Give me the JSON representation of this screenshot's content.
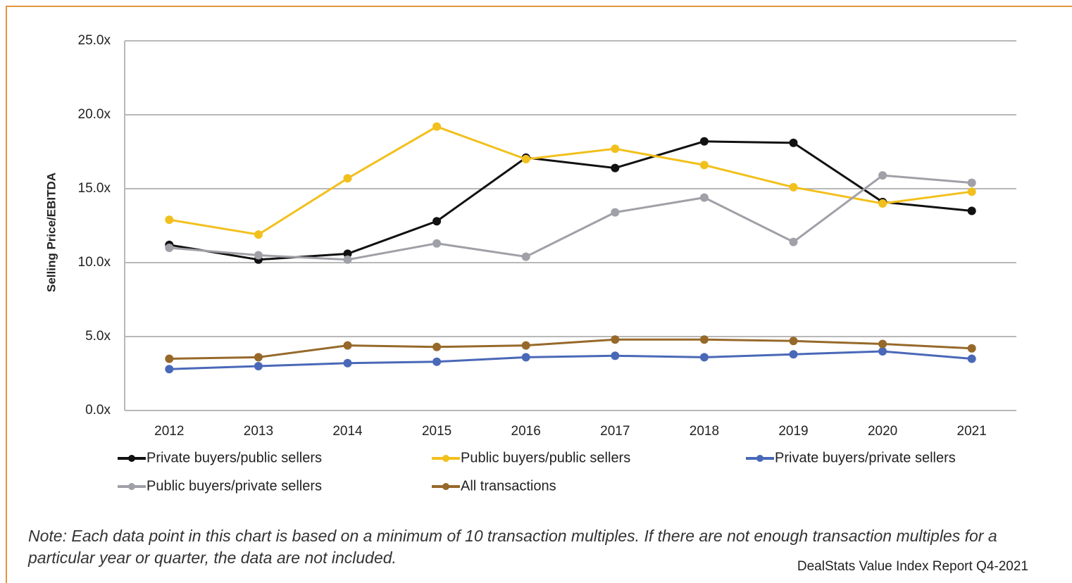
{
  "chart_data": {
    "type": "line",
    "y_label": "Selling Price/EBITDA",
    "categories": [
      "2012",
      "2013",
      "2014",
      "2015",
      "2016",
      "2017",
      "2018",
      "2019",
      "2020",
      "2021"
    ],
    "series": [
      {
        "name": "Private buyers/public sellers",
        "color": "#111111",
        "values": [
          11.2,
          10.2,
          10.6,
          12.8,
          17.1,
          16.4,
          18.2,
          18.1,
          14.1,
          13.5
        ]
      },
      {
        "name": "Public buyers/public sellers",
        "color": "#f2c01c",
        "values": [
          12.9,
          11.9,
          15.7,
          19.2,
          17.0,
          17.7,
          16.6,
          15.1,
          14.0,
          14.8
        ]
      },
      {
        "name": "Private buyers/private sellers",
        "color": "#4a68b8",
        "values": [
          2.8,
          3.0,
          3.2,
          3.3,
          3.6,
          3.7,
          3.6,
          3.8,
          4.0,
          3.5
        ]
      },
      {
        "name": "Public buyers/private sellers",
        "color": "#a0a0a8",
        "values": [
          11.0,
          10.5,
          10.2,
          11.3,
          10.4,
          13.4,
          14.4,
          11.4,
          15.9,
          15.4
        ]
      },
      {
        "name": "All transactions",
        "color": "#96692a",
        "values": [
          3.5,
          3.6,
          4.4,
          4.3,
          4.4,
          4.8,
          4.8,
          4.7,
          4.5,
          4.2
        ]
      }
    ],
    "ylim": [
      0,
      25
    ],
    "yticks": [
      {
        "value": 0,
        "label": "0.0x"
      },
      {
        "value": 5,
        "label": "5.0x"
      },
      {
        "value": 10,
        "label": "10.0x"
      },
      {
        "value": 15,
        "label": "15.0x"
      },
      {
        "value": 20,
        "label": "20.0x"
      },
      {
        "value": 25,
        "label": "25.0x"
      }
    ],
    "grid": true,
    "note": "Note: Each data point in this chart is based on a minimum of 10 transaction multiples. If there are not enough transaction multiples for a",
    "note_line2": "particular year or quarter, the data are not included.",
    "source": "DealStats Value Index Report Q4-2021"
  }
}
